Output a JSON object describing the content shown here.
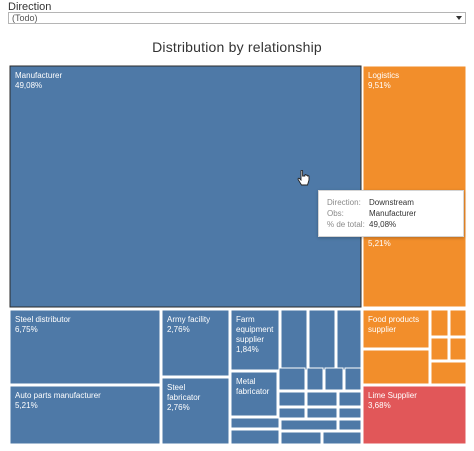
{
  "filter": {
    "label": "Direction",
    "value": "(Todo)"
  },
  "colors": {
    "blue": "#4e79a7",
    "orange": "#f28e2b",
    "red": "#e15759"
  },
  "chart_data": {
    "type": "treemap",
    "title": "Distribution by relationship",
    "tiles": [
      {
        "name": "Manufacturer",
        "value": "49,08%",
        "color": "blue"
      },
      {
        "name": "Steel distributor",
        "value": "6,75%",
        "color": "blue"
      },
      {
        "name": "Auto parts manufacturer",
        "value": "5,21%",
        "color": "blue"
      },
      {
        "name": "Army facility",
        "value": "2,76%",
        "color": "blue"
      },
      {
        "name": "Steel fabricator",
        "value": "2,76%",
        "color": "blue"
      },
      {
        "name": "Farm equipment supplier",
        "value": "1,84%",
        "color": "blue"
      },
      {
        "name": "Metal fabricator",
        "value": "",
        "color": "blue"
      },
      {
        "name": "Logistics",
        "value": "9,51%",
        "color": "orange"
      },
      {
        "name": "",
        "value": "5,21%",
        "color": "orange"
      },
      {
        "name": "Food products supplier",
        "value": "",
        "color": "orange"
      },
      {
        "name": "Lime Supplier",
        "value": "3,68%",
        "color": "red"
      }
    ]
  },
  "tooltip": {
    "rows": [
      {
        "key": "Direction:",
        "value": "Downstream"
      },
      {
        "key": "Obs:",
        "value": "Manufacturer"
      },
      {
        "key": "% de total:",
        "value": "49,08%"
      }
    ]
  }
}
